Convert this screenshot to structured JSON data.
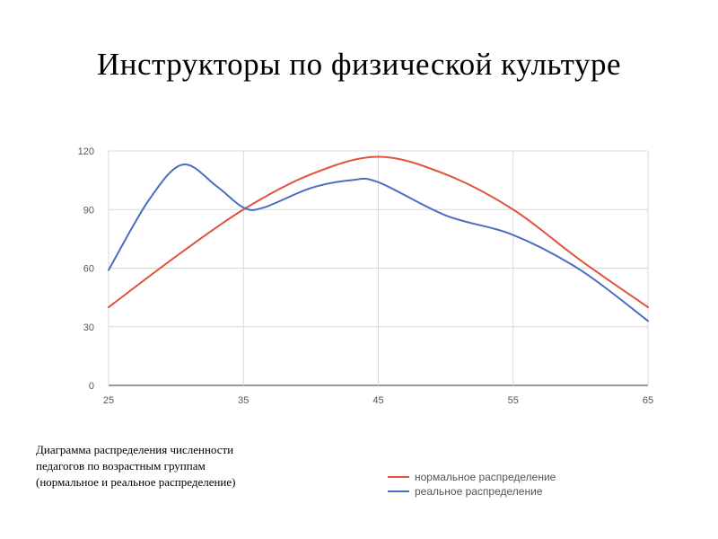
{
  "slide": {
    "title": "Инструкторы по физической культуре",
    "caption_lines": [
      "Диаграмма распределения численности",
      "педагогов по возрастным группам",
      "(нормальное и реальное распределение)"
    ]
  },
  "chart_data": {
    "type": "line",
    "title": "",
    "xlabel": "",
    "ylabel": "",
    "xlim": [
      25,
      65
    ],
    "ylim": [
      0,
      120
    ],
    "x_ticks": [
      25,
      35,
      45,
      55,
      65
    ],
    "y_ticks": [
      0,
      30,
      60,
      90,
      120
    ],
    "grid": true,
    "legend_position": "bottom-right",
    "series": [
      {
        "name": "нормальное распределение",
        "color": "#e0533c",
        "x": [
          25,
          30,
          35,
          40,
          45,
          50,
          55,
          60,
          65
        ],
        "y": [
          40,
          66,
          90,
          108,
          117,
          108,
          90,
          64,
          40
        ]
      },
      {
        "name": "реальное распределение",
        "color": "#4a6fc1",
        "x": [
          25,
          28,
          30.5,
          33,
          35,
          36.5,
          40,
          43,
          45,
          50,
          55,
          60,
          65
        ],
        "y": [
          59,
          95,
          113,
          102,
          91,
          91,
          101,
          105,
          104,
          87,
          77,
          59,
          33
        ]
      }
    ]
  }
}
